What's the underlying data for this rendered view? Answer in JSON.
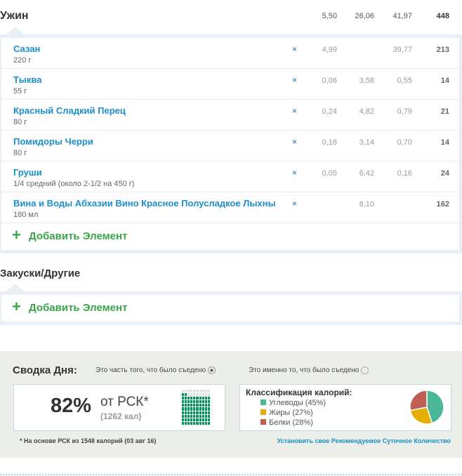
{
  "dinner": {
    "title": "Ужин",
    "totals": [
      "5,50",
      "26,06",
      "41,97",
      "448"
    ],
    "items": [
      {
        "name": "Сазан",
        "qty": "220 г",
        "remove": "×",
        "vals": [
          "4,99",
          "",
          "39,77",
          "213"
        ]
      },
      {
        "name": "Тыква",
        "qty": "55 г",
        "remove": "×",
        "vals": [
          "0,06",
          "3,58",
          "0,55",
          "14"
        ]
      },
      {
        "name": "Красный Сладкий Перец",
        "qty": "80 г",
        "remove": "×",
        "vals": [
          "0,24",
          "4,82",
          "0,79",
          "21"
        ]
      },
      {
        "name": "Помидоры Черри",
        "qty": "80 г",
        "remove": "×",
        "vals": [
          "0,16",
          "3,14",
          "0,70",
          "14"
        ]
      },
      {
        "name": "Груши",
        "qty": "1/4 средний (около 2-1/2 на 450 г)",
        "remove": "×",
        "vals": [
          "0,05",
          "6,42",
          "0,16",
          "24"
        ]
      },
      {
        "name": "Вина и Воды Абхазии Вино Красное Полусладкое Лыхны",
        "qty": "180 мл",
        "remove": "×",
        "vals": [
          "",
          "8,10",
          "",
          "162"
        ]
      }
    ],
    "add_label": "Добавить Элемент"
  },
  "snacks": {
    "title": "Закуски/Другие",
    "add_label": "Добавить Элемент"
  },
  "summary": {
    "title": "Сводка Дня:",
    "option1": "Это часть того, что было съедено",
    "option2": "Это именно то, что было съедено",
    "selected": 1,
    "percent": "82%",
    "of_label": "от РСК*",
    "kcal": "(1262 кал)",
    "percent_value": 82,
    "class_title": "Классификация калорий:",
    "legend": [
      {
        "label": "Углеводы (45%)",
        "value": 45,
        "color": "#4cb89a"
      },
      {
        "label": "Жиры (27%)",
        "value": 27,
        "color": "#e5ad06"
      },
      {
        "label": "Белки (28%)",
        "value": 28,
        "color": "#bf5f52"
      }
    ],
    "footnote": "* На основе РСК из 1548 калорий (03 авг 16)",
    "link": "Установить свое Рекомендуемое Суточное Количество"
  }
}
